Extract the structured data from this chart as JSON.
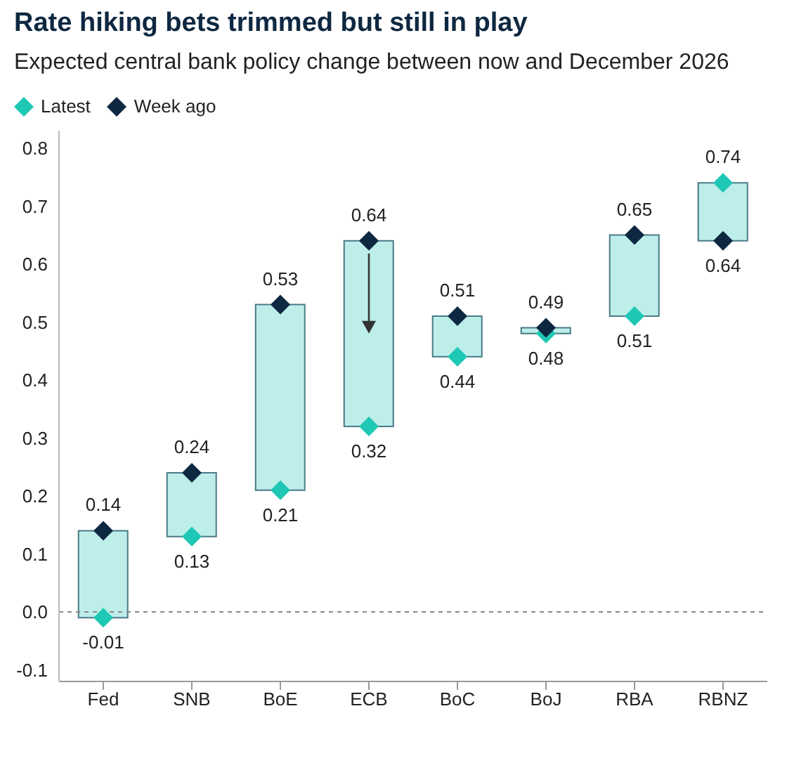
{
  "chart_data": {
    "type": "bar",
    "title": "Rate hiking bets trimmed but still in play",
    "subtitle": "Expected central bank policy change between now and December 2026",
    "categories": [
      "Fed",
      "SNB",
      "BoE",
      "ECB",
      "BoC",
      "BoJ",
      "RBA",
      "RBNZ"
    ],
    "series": [
      {
        "color": "#bdeeea",
        "base": [
          -0.01,
          0.13,
          0.21,
          0.32,
          0.44,
          0.48,
          0.51,
          0.64
        ],
        "values": [
          0.15,
          0.11,
          0.32,
          0.32,
          0.07,
          0.01,
          0.14,
          0.1
        ]
      },
      {
        "type": "scatter",
        "name": "Latest",
        "color": "#1ec8b4",
        "values": [
          -0.01,
          0.13,
          0.21,
          0.32,
          0.44,
          0.48,
          0.51,
          0.74
        ],
        "value_labels": [
          "-0.01",
          "0.13",
          "0.21",
          "0.32",
          "0.44",
          "0.48",
          "0.51",
          "0.74"
        ]
      },
      {
        "type": "scatter",
        "name": "Week ago",
        "color": "#0e2841",
        "values": [
          0.14,
          0.24,
          0.53,
          0.64,
          0.51,
          0.49,
          0.65,
          0.64
        ],
        "value_labels": [
          "0.14",
          "0.24",
          "0.53",
          "0.64",
          "0.51",
          "0.49",
          "0.65",
          "0.64"
        ]
      }
    ],
    "ylim": [
      -0.12,
      0.83
    ],
    "yticks": [
      -0.1,
      {
        "value": 0,
        "label": "0.0"
      },
      0.1,
      0.2,
      0.3,
      0.4,
      0.5,
      0.6,
      0.7,
      0.8
    ],
    "ref_lines": [
      {
        "axis": "y",
        "value": 0,
        "color": "#888888",
        "line_style": "dashed"
      }
    ],
    "marker": "diamond",
    "grid": false,
    "legend": "top left"
  }
}
